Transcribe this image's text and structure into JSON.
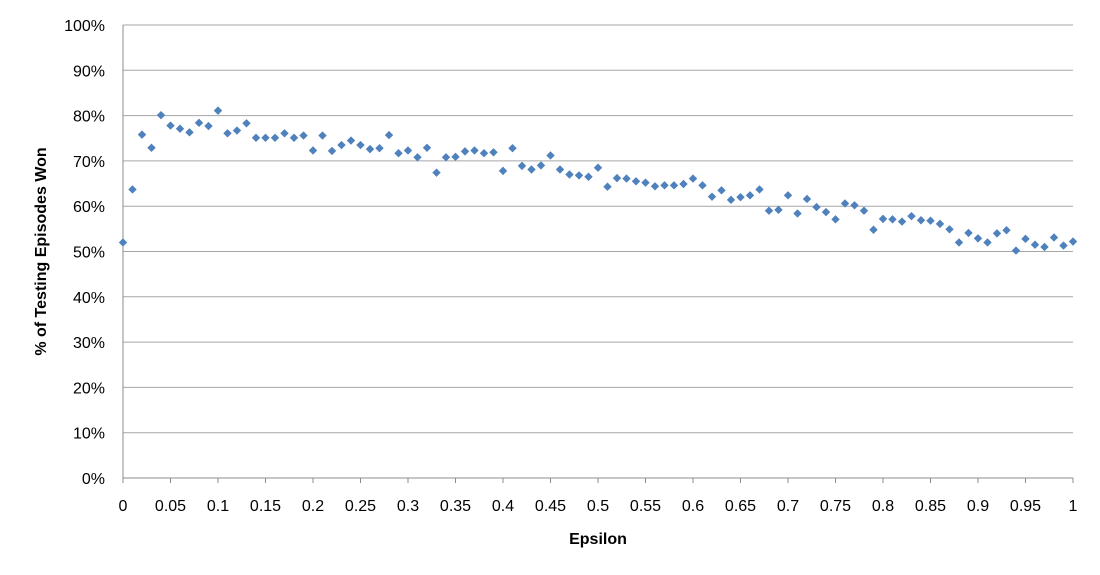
{
  "chart_data": {
    "type": "scatter",
    "title": "",
    "xlabel": "Epsilon",
    "ylabel": "% of Testing Episodes Won",
    "xlim": [
      0,
      1
    ],
    "ylim": [
      0,
      100
    ],
    "grid": true,
    "legend": "none",
    "marker": "diamond",
    "color": "#4f81bd",
    "x_ticks": [
      "0",
      "0.05",
      "0.1",
      "0.15",
      "0.2",
      "0.25",
      "0.3",
      "0.35",
      "0.4",
      "0.45",
      "0.5",
      "0.55",
      "0.6",
      "0.65",
      "0.7",
      "0.75",
      "0.8",
      "0.85",
      "0.9",
      "0.95",
      "1"
    ],
    "y_ticks": [
      "0%",
      "10%",
      "20%",
      "30%",
      "40%",
      "50%",
      "60%",
      "70%",
      "80%",
      "90%",
      "100%"
    ],
    "x": [
      0,
      0.01,
      0.02,
      0.03,
      0.04,
      0.05,
      0.06,
      0.07,
      0.08,
      0.09,
      0.1,
      0.11,
      0.12,
      0.13,
      0.14,
      0.15,
      0.16,
      0.17,
      0.18,
      0.19,
      0.2,
      0.21,
      0.22,
      0.23,
      0.24,
      0.25,
      0.26,
      0.27,
      0.28,
      0.29,
      0.3,
      0.31,
      0.32,
      0.33,
      0.34,
      0.35,
      0.36,
      0.37,
      0.38,
      0.39,
      0.4,
      0.41,
      0.42,
      0.43,
      0.44,
      0.45,
      0.46,
      0.47,
      0.48,
      0.49,
      0.5,
      0.51,
      0.52,
      0.53,
      0.54,
      0.55,
      0.56,
      0.57,
      0.58,
      0.59,
      0.6,
      0.61,
      0.62,
      0.63,
      0.64,
      0.65,
      0.66,
      0.67,
      0.68,
      0.69,
      0.7,
      0.71,
      0.72,
      0.73,
      0.74,
      0.75,
      0.76,
      0.77,
      0.78,
      0.79,
      0.8,
      0.81,
      0.82,
      0.83,
      0.84,
      0.85,
      0.86,
      0.87,
      0.88,
      0.89,
      0.9,
      0.91,
      0.92,
      0.93,
      0.94,
      0.95,
      0.96,
      0.97,
      0.98,
      0.99,
      1
    ],
    "y": [
      52,
      63.7,
      75.8,
      72.9,
      80.1,
      77.8,
      77.1,
      76.3,
      78.4,
      77.7,
      81.1,
      76.1,
      76.7,
      78.3,
      75.1,
      75.1,
      75.1,
      76.1,
      75.1,
      75.6,
      72.3,
      75.6,
      72.2,
      73.5,
      74.5,
      73.5,
      72.6,
      72.8,
      75.7,
      71.7,
      72.3,
      70.8,
      72.9,
      67.4,
      70.8,
      70.9,
      72.1,
      72.3,
      71.7,
      71.9,
      67.8,
      72.8,
      68.9,
      68.1,
      69,
      71.2,
      68.1,
      67,
      66.8,
      66.5,
      68.5,
      64.3,
      66.2,
      66.1,
      65.5,
      65.2,
      64.4,
      64.6,
      64.6,
      64.9,
      66.1,
      64.6,
      62.1,
      63.5,
      61.4,
      62,
      62.4,
      63.7,
      59,
      59.2,
      62.4,
      58.4,
      61.6,
      59.8,
      58.7,
      57.1,
      60.6,
      60.2,
      59,
      54.8,
      57.2,
      57.1,
      56.6,
      57.8,
      56.9,
      56.8,
      56.1,
      54.9,
      52,
      54.1,
      52.9,
      52,
      54,
      54.7,
      50.2,
      52.8,
      51.5,
      51,
      53.1,
      51.3,
      52.2
    ]
  }
}
